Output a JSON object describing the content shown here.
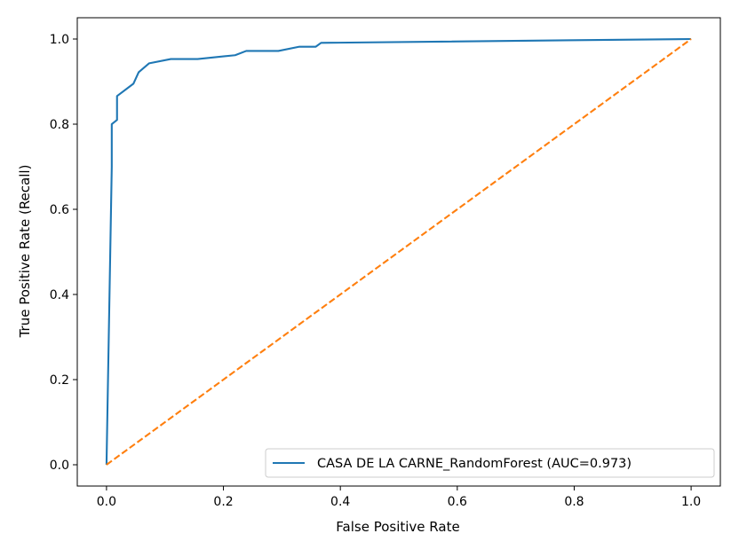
{
  "chart_data": {
    "type": "line",
    "title": "",
    "xlabel": "False Positive Rate",
    "ylabel": "True Positive Rate (Recall)",
    "xlim": [
      -0.05,
      1.05
    ],
    "ylim": [
      -0.05,
      1.05
    ],
    "xticks": [
      0.0,
      0.2,
      0.4,
      0.6,
      0.8,
      1.0
    ],
    "yticks": [
      0.0,
      0.2,
      0.4,
      0.6,
      0.8,
      1.0
    ],
    "xtick_labels": [
      "0.0",
      "0.2",
      "0.4",
      "0.6",
      "0.8",
      "1.0"
    ],
    "ytick_labels": [
      "0.0",
      "0.2",
      "0.4",
      "0.6",
      "0.8",
      "1.0"
    ],
    "grid": false,
    "legend_position": "lower-right",
    "series": [
      {
        "name": "CASA DE LA CARNE_RandomForest (AUC=0.973)",
        "color": "#1f77b4",
        "style": "solid",
        "x": [
          0.0,
          0.009,
          0.009,
          0.009,
          0.018,
          0.018,
          0.018,
          0.046,
          0.055,
          0.073,
          0.11,
          0.156,
          0.22,
          0.239,
          0.294,
          0.33,
          0.358,
          0.367,
          1.0
        ],
        "y": [
          0.0,
          0.7,
          0.79,
          0.8,
          0.81,
          0.85,
          0.866,
          0.895,
          0.922,
          0.943,
          0.953,
          0.953,
          0.962,
          0.972,
          0.972,
          0.982,
          0.982,
          0.991,
          1.0
        ]
      },
      {
        "name": "",
        "color": "#ff7f0e",
        "style": "dashed",
        "x": [
          0.0,
          1.0
        ],
        "y": [
          0.0,
          1.0
        ]
      }
    ]
  }
}
